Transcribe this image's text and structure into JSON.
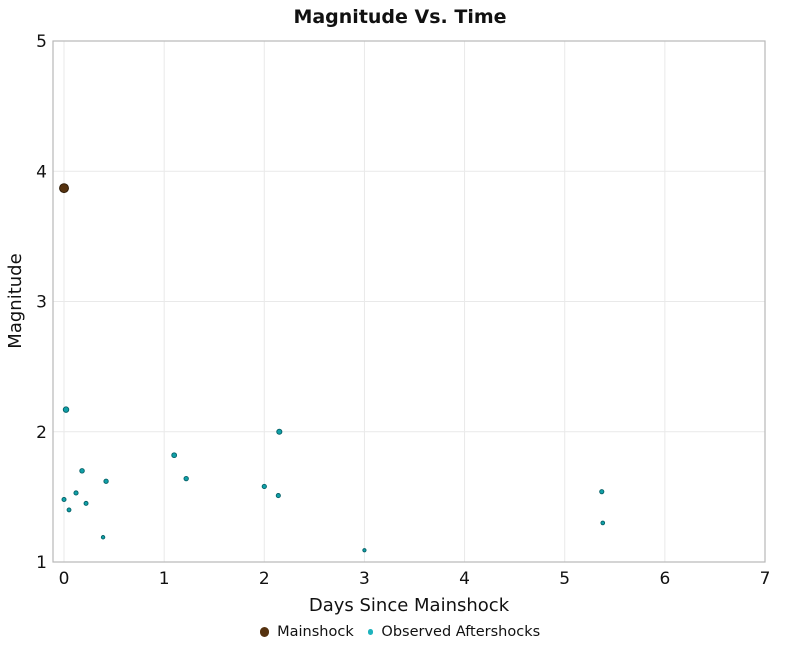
{
  "figure": {
    "background": "#ffffff",
    "frame_color": "#b8b8b8",
    "gridline_color": "#e9e9e9",
    "text_color": "#111111"
  },
  "chart_data": {
    "type": "scatter",
    "title": "Magnitude Vs. Time",
    "xlabel": "Days Since Mainshock",
    "ylabel": "Magnitude",
    "xlim": [
      -0.11,
      7
    ],
    "ylim": [
      1,
      5
    ],
    "x_ticks": [
      0,
      1,
      2,
      3,
      4,
      5,
      6,
      7
    ],
    "y_ticks": [
      1,
      2,
      3,
      4,
      5
    ],
    "grid": true,
    "legend_position": "bottom",
    "marker_size": {
      "rule": "diameter_px = base + per_magnitude * magnitude",
      "base": 1.07,
      "per_magnitude": 2.05
    },
    "series": [
      {
        "name": "Mainshock",
        "marker_fill": "#55320f",
        "marker_stroke": "#2c1a06",
        "legend_marker_color": "#55320f",
        "legend_marker_diameter": 9.3,
        "points": [
          {
            "x": 0.0,
            "y": 3.87
          }
        ]
      },
      {
        "name": "Observed Aftershocks",
        "marker_fill": "#10a0a8",
        "marker_stroke": "#056066",
        "legend_marker_color": "#1db3bd",
        "legend_marker_diameter": 5.7,
        "points": [
          {
            "x": 0.0,
            "y": 1.48
          },
          {
            "x": 0.02,
            "y": 2.17
          },
          {
            "x": 0.05,
            "y": 1.4
          },
          {
            "x": 0.12,
            "y": 1.53
          },
          {
            "x": 0.18,
            "y": 1.7
          },
          {
            "x": 0.22,
            "y": 1.45
          },
          {
            "x": 0.39,
            "y": 1.19
          },
          {
            "x": 0.42,
            "y": 1.62
          },
          {
            "x": 1.1,
            "y": 1.82
          },
          {
            "x": 1.22,
            "y": 1.64
          },
          {
            "x": 2.0,
            "y": 1.58
          },
          {
            "x": 2.14,
            "y": 1.51
          },
          {
            "x": 2.15,
            "y": 2.0
          },
          {
            "x": 3.0,
            "y": 1.09
          },
          {
            "x": 5.37,
            "y": 1.54
          },
          {
            "x": 5.38,
            "y": 1.3
          }
        ]
      }
    ]
  }
}
